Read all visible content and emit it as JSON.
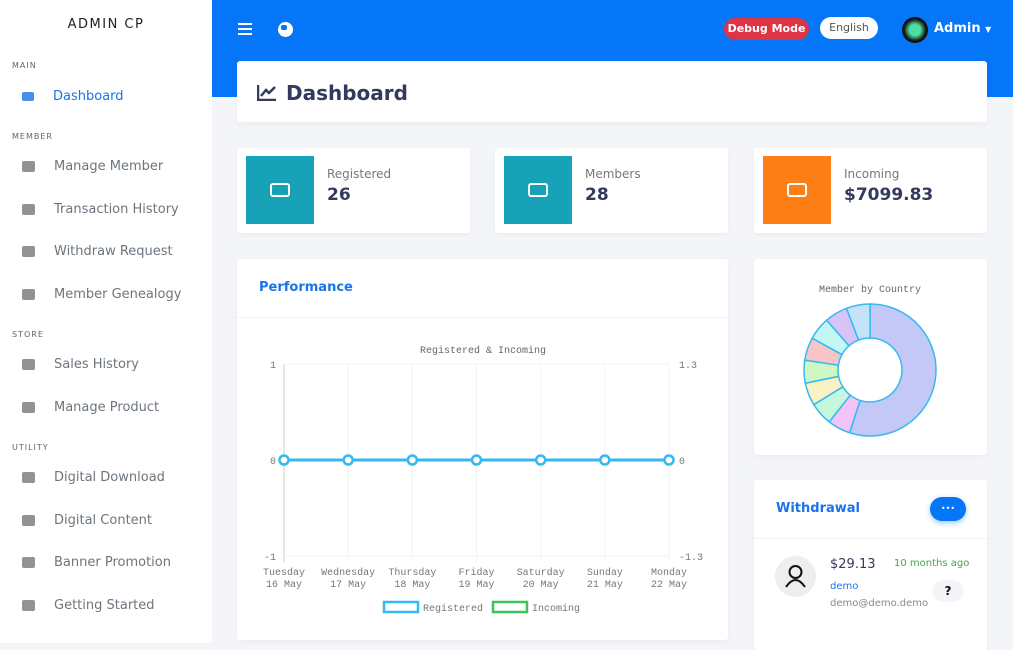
{
  "sidebar": {
    "brand": "ADMIN CP",
    "sections": [
      {
        "title": "MAIN",
        "items": [
          {
            "label": "Dashboard",
            "icon": "chart-line-icon",
            "active": true
          }
        ]
      },
      {
        "title": "MEMBER",
        "items": [
          {
            "label": "Manage Member",
            "icon": "users-icon"
          },
          {
            "label": "Transaction History",
            "icon": "cash-register-icon"
          },
          {
            "label": "Withdraw Request",
            "icon": "hand-holding-icon"
          },
          {
            "label": "Member Genealogy",
            "icon": "sitemap-icon"
          }
        ]
      },
      {
        "title": "STORE",
        "items": [
          {
            "label": "Sales History",
            "icon": "store-icon"
          },
          {
            "label": "Manage Product",
            "icon": "boxes-icon"
          }
        ]
      },
      {
        "title": "UTILITY",
        "items": [
          {
            "label": "Digital Download",
            "icon": "cloud-download-icon"
          },
          {
            "label": "Digital Content",
            "icon": "copy-icon"
          },
          {
            "label": "Banner Promotion",
            "icon": "puzzle-icon"
          },
          {
            "label": "Getting Started",
            "icon": "flag-icon"
          }
        ]
      }
    ]
  },
  "topbar": {
    "debug": "Debug Mode",
    "language": "English",
    "user": "Admin"
  },
  "page": {
    "title": "Dashboard"
  },
  "stats": [
    {
      "label": "Registered",
      "value": "26",
      "color": "#17a2b8",
      "icon": "address-book-icon"
    },
    {
      "label": "Members",
      "value": "28",
      "color": "#17a2b8",
      "icon": "handshake-icon"
    },
    {
      "label": "Incoming",
      "value": "$7099.83",
      "color": "#fd7e14",
      "icon": "money-bill-icon"
    }
  ],
  "performance": {
    "title": "Performance"
  },
  "chart_data": [
    {
      "type": "line",
      "title": "Registered & Incoming",
      "categories": [
        [
          "Tuesday",
          "16 May"
        ],
        [
          "Wednesday",
          "17 May"
        ],
        [
          "Thursday",
          "18 May"
        ],
        [
          "Friday",
          "19 May"
        ],
        [
          "Saturday",
          "20 May"
        ],
        [
          "Sunday",
          "21 May"
        ],
        [
          "Monday",
          "22 May"
        ]
      ],
      "series": [
        {
          "name": "Registered",
          "values": [
            0,
            0,
            0,
            0,
            0,
            0,
            0
          ],
          "color": "#36b9f0"
        },
        {
          "name": "Incoming",
          "values": [
            0,
            0,
            0,
            0,
            0,
            0,
            0
          ],
          "color": "#3cc35a"
        }
      ],
      "y_left": {
        "range": [
          -1,
          1
        ],
        "ticks": [
          "1",
          "0",
          "-1"
        ]
      },
      "y_right": {
        "range": [
          -1.3,
          1.3
        ],
        "ticks": [
          "1.3",
          "0",
          "-1.3"
        ]
      },
      "legend": "bottom",
      "grid": true
    },
    {
      "type": "pie",
      "donut": true,
      "title": "Member by Country",
      "values": [
        55,
        5.6,
        5.6,
        5.6,
        5.6,
        5.6,
        5.6,
        5.6,
        5.8
      ],
      "colors": [
        "#c3c8f7",
        "#f3c4f7",
        "#c4f7dc",
        "#f8f2c4",
        "#cff7c4",
        "#f7c4c8",
        "#c4f7f3",
        "#d6c4f7",
        "#c4e3f7"
      ],
      "border": "#36b9f0"
    }
  ],
  "withdrawal": {
    "title": "Withdrawal",
    "more": "•••",
    "amount": "$29.13",
    "time": "10 months ago",
    "user": "demo",
    "email": "demo@demo.demo",
    "status": "?"
  }
}
